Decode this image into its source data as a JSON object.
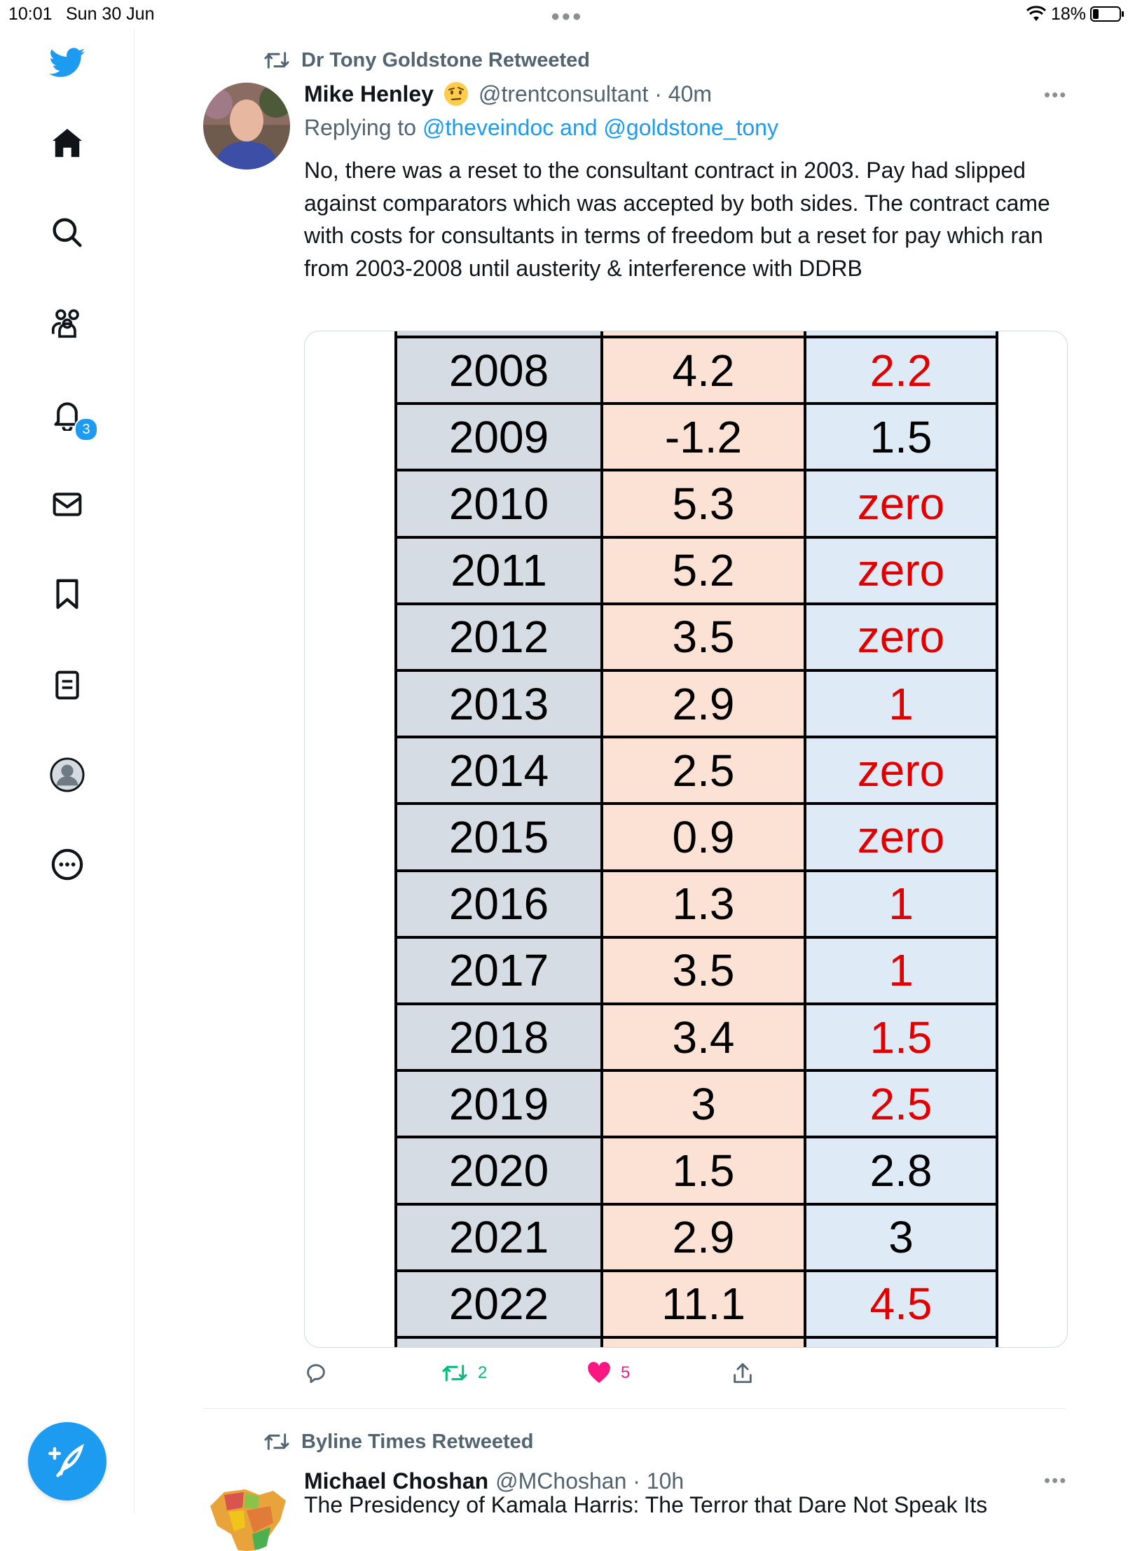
{
  "status_bar": {
    "time": "10:01",
    "date": "Sun 30 Jun",
    "battery": "18%"
  },
  "sidebar": {
    "notifications_badge": "3"
  },
  "tweets": [
    {
      "retweeted_by": "Dr Tony Goldstone Retweeted",
      "author": "Mike Henley",
      "handle_time": "@trentconsultant · 40m",
      "reply_prefix": "Replying to ",
      "reply_mentions": "@theveindoc and @goldstone_tony",
      "text": "No, there was a reset to the consultant contract in 2003. Pay had slipped against comparators which was accepted by both sides. The contract came with costs for consultants in terms of freedom but a reset for pay which ran from 2003-2008 until austerity & interference with DDRB",
      "actions": {
        "reply_count": "",
        "retweet_count": "2",
        "like_count": "5"
      }
    },
    {
      "retweeted_by": "Byline Times Retweeted",
      "author": "Michael Choshan",
      "handle_time": "@MChoshan · 10h",
      "text": "The Presidency of Kamala Harris: The Terror that Dare Not Speak Its"
    }
  ],
  "media_table": {
    "rows": [
      {
        "year": "2008",
        "cpi": "4.2",
        "pay": "2.2",
        "pay_color": "red"
      },
      {
        "year": "2009",
        "cpi": "-1.2",
        "pay": "1.5",
        "pay_color": "black"
      },
      {
        "year": "2010",
        "cpi": "5.3",
        "pay": "zero",
        "pay_color": "red"
      },
      {
        "year": "2011",
        "cpi": "5.2",
        "pay": "zero",
        "pay_color": "red"
      },
      {
        "year": "2012",
        "cpi": "3.5",
        "pay": "zero",
        "pay_color": "red"
      },
      {
        "year": "2013",
        "cpi": "2.9",
        "pay": "1",
        "pay_color": "red"
      },
      {
        "year": "2014",
        "cpi": "2.5",
        "pay": "zero",
        "pay_color": "red"
      },
      {
        "year": "2015",
        "cpi": "0.9",
        "pay": "zero",
        "pay_color": "red"
      },
      {
        "year": "2016",
        "cpi": "1.3",
        "pay": "1",
        "pay_color": "red"
      },
      {
        "year": "2017",
        "cpi": "3.5",
        "pay": "1",
        "pay_color": "red"
      },
      {
        "year": "2018",
        "cpi": "3.4",
        "pay": "1.5",
        "pay_color": "red"
      },
      {
        "year": "2019",
        "cpi": "3",
        "pay": "2.5",
        "pay_color": "red"
      },
      {
        "year": "2020",
        "cpi": "1.5",
        "pay": "2.8",
        "pay_color": "black"
      },
      {
        "year": "2021",
        "cpi": "2.9",
        "pay": "3",
        "pay_color": "black"
      },
      {
        "year": "2022",
        "cpi": "11.1",
        "pay": "4.5",
        "pay_color": "red"
      }
    ]
  },
  "colors": {
    "accent": "#1d9bf0",
    "muted": "#536471",
    "retweet_green": "#00ba7c",
    "like_pink": "#f91880",
    "table_red": "#e00000"
  }
}
